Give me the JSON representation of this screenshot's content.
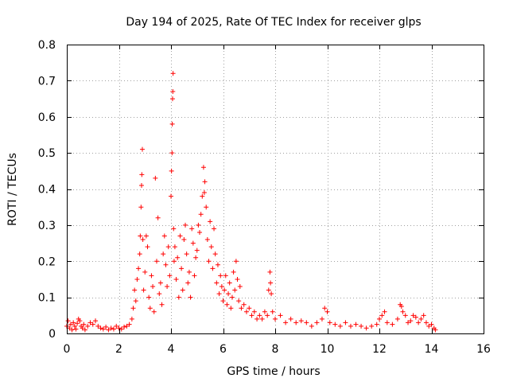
{
  "chart_data": {
    "type": "scatter",
    "title": "Day 194 of 2025, Rate Of TEC Index for receiver glps",
    "xlabel": "GPS time / hours",
    "ylabel": "ROTI / TECUs",
    "xlim": [
      0,
      16
    ],
    "ylim": [
      0,
      0.8
    ],
    "grid": true,
    "marker": "+",
    "marker_color": "#ff0000",
    "x_ticks": [
      0,
      2,
      4,
      6,
      8,
      10,
      12,
      14,
      16
    ],
    "x_tick_labels": [
      "0",
      "2",
      "4",
      "6",
      "8",
      "10",
      "12",
      "14",
      "16"
    ],
    "y_ticks": [
      0,
      0.1,
      0.2,
      0.3,
      0.4,
      0.5,
      0.6,
      0.7,
      0.8
    ],
    "y_tick_labels": [
      "0",
      "0.1",
      "0.2",
      "0.3",
      "0.4",
      "0.5",
      "0.6",
      "0.7",
      "0.8"
    ],
    "series": [
      {
        "name": "ROTI",
        "points": [
          [
            0.0,
            0.02
          ],
          [
            0.05,
            0.035
          ],
          [
            0.1,
            0.015
          ],
          [
            0.15,
            0.025
          ],
          [
            0.2,
            0.01
          ],
          [
            0.25,
            0.03
          ],
          [
            0.3,
            0.02
          ],
          [
            0.35,
            0.012
          ],
          [
            0.4,
            0.028
          ],
          [
            0.45,
            0.04
          ],
          [
            0.5,
            0.035
          ],
          [
            0.55,
            0.02
          ],
          [
            0.6,
            0.015
          ],
          [
            0.65,
            0.025
          ],
          [
            0.7,
            0.01
          ],
          [
            0.8,
            0.02
          ],
          [
            0.9,
            0.03
          ],
          [
            1.0,
            0.025
          ],
          [
            1.1,
            0.035
          ],
          [
            1.2,
            0.02
          ],
          [
            1.3,
            0.015
          ],
          [
            1.4,
            0.012
          ],
          [
            1.5,
            0.018
          ],
          [
            1.6,
            0.01
          ],
          [
            1.7,
            0.015
          ],
          [
            1.8,
            0.012
          ],
          [
            1.9,
            0.02
          ],
          [
            2.0,
            0.015
          ],
          [
            2.1,
            0.012
          ],
          [
            2.2,
            0.018
          ],
          [
            2.3,
            0.02
          ],
          [
            2.4,
            0.025
          ],
          [
            2.5,
            0.04
          ],
          [
            2.55,
            0.07
          ],
          [
            2.6,
            0.12
          ],
          [
            2.65,
            0.09
          ],
          [
            2.7,
            0.15
          ],
          [
            2.75,
            0.18
          ],
          [
            2.8,
            0.22
          ],
          [
            2.82,
            0.27
          ],
          [
            2.85,
            0.35
          ],
          [
            2.87,
            0.41
          ],
          [
            2.88,
            0.44
          ],
          [
            2.9,
            0.51
          ],
          [
            2.92,
            0.26
          ],
          [
            2.95,
            0.12
          ],
          [
            3.0,
            0.17
          ],
          [
            3.05,
            0.27
          ],
          [
            3.1,
            0.24
          ],
          [
            3.15,
            0.1
          ],
          [
            3.2,
            0.07
          ],
          [
            3.25,
            0.16
          ],
          [
            3.3,
            0.13
          ],
          [
            3.35,
            0.06
          ],
          [
            3.4,
            0.43
          ],
          [
            3.45,
            0.2
          ],
          [
            3.5,
            0.32
          ],
          [
            3.55,
            0.11
          ],
          [
            3.6,
            0.14
          ],
          [
            3.65,
            0.08
          ],
          [
            3.7,
            0.22
          ],
          [
            3.75,
            0.27
          ],
          [
            3.8,
            0.19
          ],
          [
            3.85,
            0.13
          ],
          [
            3.9,
            0.24
          ],
          [
            3.95,
            0.16
          ],
          [
            4.0,
            0.38
          ],
          [
            4.02,
            0.45
          ],
          [
            4.04,
            0.5
          ],
          [
            4.05,
            0.58
          ],
          [
            4.06,
            0.65
          ],
          [
            4.07,
            0.67
          ],
          [
            4.08,
            0.72
          ],
          [
            4.1,
            0.29
          ],
          [
            4.12,
            0.2
          ],
          [
            4.15,
            0.24
          ],
          [
            4.2,
            0.15
          ],
          [
            4.25,
            0.21
          ],
          [
            4.3,
            0.1
          ],
          [
            4.35,
            0.27
          ],
          [
            4.4,
            0.18
          ],
          [
            4.45,
            0.12
          ],
          [
            4.5,
            0.26
          ],
          [
            4.55,
            0.3
          ],
          [
            4.6,
            0.22
          ],
          [
            4.65,
            0.14
          ],
          [
            4.7,
            0.17
          ],
          [
            4.75,
            0.1
          ],
          [
            4.8,
            0.29
          ],
          [
            4.85,
            0.25
          ],
          [
            4.9,
            0.16
          ],
          [
            4.95,
            0.21
          ],
          [
            5.0,
            0.23
          ],
          [
            5.05,
            0.3
          ],
          [
            5.1,
            0.28
          ],
          [
            5.15,
            0.33
          ],
          [
            5.2,
            0.38
          ],
          [
            5.25,
            0.46
          ],
          [
            5.28,
            0.39
          ],
          [
            5.3,
            0.42
          ],
          [
            5.35,
            0.35
          ],
          [
            5.4,
            0.26
          ],
          [
            5.45,
            0.2
          ],
          [
            5.5,
            0.31
          ],
          [
            5.55,
            0.24
          ],
          [
            5.6,
            0.18
          ],
          [
            5.65,
            0.29
          ],
          [
            5.7,
            0.22
          ],
          [
            5.75,
            0.14
          ],
          [
            5.8,
            0.19
          ],
          [
            5.85,
            0.11
          ],
          [
            5.9,
            0.16
          ],
          [
            5.95,
            0.13
          ],
          [
            6.0,
            0.09
          ],
          [
            6.05,
            0.12
          ],
          [
            6.1,
            0.16
          ],
          [
            6.15,
            0.08
          ],
          [
            6.2,
            0.11
          ],
          [
            6.25,
            0.14
          ],
          [
            6.3,
            0.07
          ],
          [
            6.35,
            0.1
          ],
          [
            6.4,
            0.17
          ],
          [
            6.45,
            0.12
          ],
          [
            6.5,
            0.2
          ],
          [
            6.55,
            0.15
          ],
          [
            6.6,
            0.09
          ],
          [
            6.65,
            0.13
          ],
          [
            6.7,
            0.07
          ],
          [
            6.8,
            0.08
          ],
          [
            6.9,
            0.06
          ],
          [
            7.0,
            0.07
          ],
          [
            7.1,
            0.05
          ],
          [
            7.2,
            0.06
          ],
          [
            7.3,
            0.04
          ],
          [
            7.4,
            0.05
          ],
          [
            7.5,
            0.04
          ],
          [
            7.6,
            0.06
          ],
          [
            7.7,
            0.05
          ],
          [
            7.75,
            0.12
          ],
          [
            7.8,
            0.17
          ],
          [
            7.82,
            0.14
          ],
          [
            7.85,
            0.11
          ],
          [
            7.9,
            0.06
          ],
          [
            8.0,
            0.04
          ],
          [
            8.2,
            0.05
          ],
          [
            8.4,
            0.03
          ],
          [
            8.6,
            0.04
          ],
          [
            8.8,
            0.03
          ],
          [
            9.0,
            0.035
          ],
          [
            9.2,
            0.03
          ],
          [
            9.4,
            0.02
          ],
          [
            9.6,
            0.03
          ],
          [
            9.8,
            0.04
          ],
          [
            9.9,
            0.07
          ],
          [
            10.0,
            0.06
          ],
          [
            10.1,
            0.03
          ],
          [
            10.3,
            0.025
          ],
          [
            10.5,
            0.02
          ],
          [
            10.7,
            0.03
          ],
          [
            10.9,
            0.02
          ],
          [
            11.1,
            0.025
          ],
          [
            11.3,
            0.02
          ],
          [
            11.5,
            0.015
          ],
          [
            11.7,
            0.02
          ],
          [
            11.9,
            0.025
          ],
          [
            12.0,
            0.04
          ],
          [
            12.1,
            0.05
          ],
          [
            12.2,
            0.06
          ],
          [
            12.3,
            0.03
          ],
          [
            12.5,
            0.025
          ],
          [
            12.7,
            0.04
          ],
          [
            12.8,
            0.08
          ],
          [
            12.85,
            0.075
          ],
          [
            12.9,
            0.06
          ],
          [
            13.0,
            0.05
          ],
          [
            13.1,
            0.03
          ],
          [
            13.2,
            0.035
          ],
          [
            13.3,
            0.05
          ],
          [
            13.4,
            0.045
          ],
          [
            13.5,
            0.03
          ],
          [
            13.6,
            0.04
          ],
          [
            13.7,
            0.05
          ],
          [
            13.8,
            0.03
          ],
          [
            13.9,
            0.02
          ],
          [
            14.0,
            0.025
          ],
          [
            14.1,
            0.015
          ],
          [
            14.15,
            0.01
          ]
        ]
      }
    ]
  }
}
